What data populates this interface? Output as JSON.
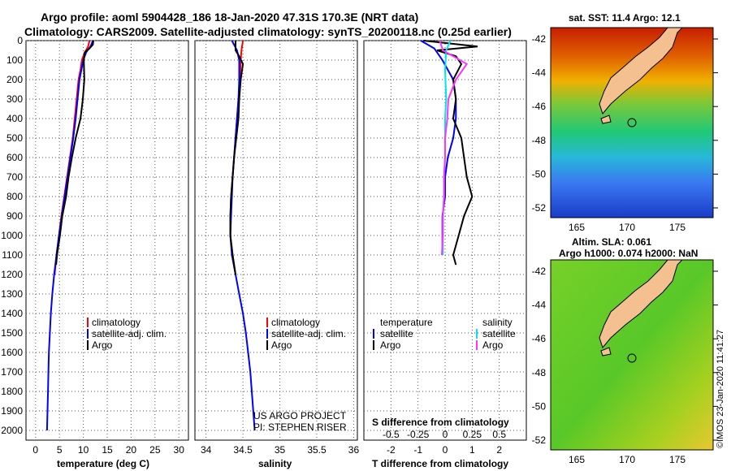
{
  "header": {
    "title_line1": "Argo profile: aoml 5904428_186 18-Jan-2020 47.31S 170.3E (NRT data)",
    "title_line2": "Climatology: CARS2009. Satellite-adjusted climatology: synTS_20200118.nc (0.25d earlier)"
  },
  "map_top": {
    "title": "sat. SST: 11.4 Argo: 12.1",
    "lat_ticks": [
      "-42",
      "-44",
      "-46",
      "-48",
      "-50",
      "-52"
    ],
    "lon_ticks": [
      "165",
      "170",
      "175"
    ]
  },
  "map_bottom": {
    "title_line1": "Altim. SLA: 0.061",
    "title_line2": "Argo h1000: 0.074 h2000: NaN",
    "lat_ticks": [
      "-42",
      "-44",
      "-46",
      "-48",
      "-50",
      "-52"
    ],
    "lon_ticks": [
      "165",
      "170",
      "175"
    ]
  },
  "credits": {
    "project": "US ARGO PROJECT",
    "pi": "PI: STEPHEN RISER",
    "stamp": "©IMOS 23-Jan-2020 11:41:27"
  },
  "chart_data": [
    {
      "type": "line",
      "xlabel": "temperature (deg C)",
      "x_ticks": [
        "0",
        "5",
        "10",
        "15",
        "20",
        "25",
        "30"
      ],
      "xlim": [
        -2,
        32
      ],
      "ylim": [
        2050,
        0
      ],
      "y_ticks": [
        "0",
        "100",
        "200",
        "300",
        "400",
        "500",
        "600",
        "700",
        "800",
        "900",
        "1000",
        "1100",
        "1200",
        "1300",
        "1400",
        "1500",
        "1600",
        "1700",
        "1800",
        "1900",
        "2000"
      ],
      "legend": [
        "climatology",
        "satellite-adj. clim.",
        "Argo"
      ],
      "series": [
        {
          "name": "climatology",
          "color": "#ff0000",
          "points": [
            [
              11.3,
              0
            ],
            [
              11.0,
              30
            ],
            [
              10.3,
              60
            ],
            [
              9.7,
              100
            ],
            [
              9.4,
              150
            ],
            [
              9.0,
              200
            ],
            [
              8.6,
              300
            ],
            [
              8.2,
              400
            ],
            [
              7.8,
              500
            ],
            [
              7.2,
              600
            ],
            [
              6.6,
              700
            ],
            [
              6.0,
              800
            ],
            [
              5.4,
              900
            ],
            [
              4.9,
              1000
            ],
            [
              4.4,
              1100
            ],
            [
              4.0,
              1200
            ]
          ]
        },
        {
          "name": "satellite-adj. clim.",
          "color": "#0000ff",
          "points": [
            [
              12.0,
              0
            ],
            [
              11.5,
              30
            ],
            [
              10.6,
              60
            ],
            [
              10.0,
              100
            ],
            [
              9.6,
              150
            ],
            [
              9.2,
              200
            ],
            [
              8.8,
              300
            ],
            [
              8.4,
              400
            ],
            [
              7.9,
              500
            ],
            [
              7.3,
              600
            ],
            [
              6.7,
              700
            ],
            [
              6.1,
              800
            ],
            [
              5.5,
              900
            ],
            [
              4.9,
              1000
            ],
            [
              4.4,
              1100
            ],
            [
              3.9,
              1200
            ],
            [
              3.5,
              1300
            ],
            [
              3.2,
              1400
            ],
            [
              3.0,
              1500
            ],
            [
              2.8,
              1600
            ],
            [
              2.7,
              1700
            ],
            [
              2.6,
              1800
            ],
            [
              2.5,
              1900
            ],
            [
              2.4,
              2000
            ]
          ]
        },
        {
          "name": "Argo",
          "color": "#000000",
          "points": [
            [
              12.1,
              0
            ],
            [
              12.0,
              20
            ],
            [
              11.3,
              40
            ],
            [
              10.3,
              60
            ],
            [
              10.1,
              100
            ],
            [
              10.2,
              200
            ],
            [
              9.9,
              300
            ],
            [
              9.4,
              400
            ],
            [
              8.4,
              500
            ],
            [
              7.6,
              600
            ],
            [
              6.9,
              700
            ],
            [
              6.4,
              800
            ],
            [
              5.6,
              900
            ],
            [
              5.1,
              1000
            ],
            [
              4.5,
              1100
            ],
            [
              4.3,
              1150
            ]
          ]
        }
      ]
    },
    {
      "type": "line",
      "xlabel": "salinity",
      "x_ticks": [
        "34",
        "34.5",
        "35",
        "35.5",
        "36"
      ],
      "xlim": [
        33.85,
        36.05
      ],
      "ylim": [
        2050,
        0
      ],
      "legend": [
        "climatology",
        "satellite-adj. clim.",
        "Argo"
      ],
      "series": [
        {
          "name": "climatology",
          "color": "#ff0000",
          "points": [
            [
              34.5,
              0
            ],
            [
              34.48,
              50
            ],
            [
              34.47,
              100
            ],
            [
              34.46,
              200
            ],
            [
              34.44,
              300
            ],
            [
              34.42,
              400
            ],
            [
              34.4,
              500
            ],
            [
              34.38,
              600
            ],
            [
              34.36,
              700
            ],
            [
              34.34,
              800
            ],
            [
              34.33,
              900
            ],
            [
              34.33,
              1000
            ],
            [
              34.36,
              1100
            ],
            [
              34.4,
              1200
            ]
          ]
        },
        {
          "name": "satellite-adj. clim.",
          "color": "#0000ff",
          "points": [
            [
              34.35,
              0
            ],
            [
              34.42,
              50
            ],
            [
              34.45,
              100
            ],
            [
              34.45,
              200
            ],
            [
              34.44,
              300
            ],
            [
              34.42,
              400
            ],
            [
              34.4,
              500
            ],
            [
              34.38,
              600
            ],
            [
              34.36,
              700
            ],
            [
              34.35,
              800
            ],
            [
              34.34,
              900
            ],
            [
              34.33,
              1000
            ],
            [
              34.35,
              1100
            ],
            [
              34.4,
              1200
            ],
            [
              34.45,
              1300
            ],
            [
              34.5,
              1400
            ],
            [
              34.54,
              1500
            ],
            [
              34.57,
              1600
            ],
            [
              34.6,
              1700
            ],
            [
              34.62,
              1800
            ],
            [
              34.64,
              1900
            ],
            [
              34.66,
              2000
            ]
          ]
        },
        {
          "name": "Argo",
          "color": "#000000",
          "points": [
            [
              34.4,
              0
            ],
            [
              34.4,
              50
            ],
            [
              34.45,
              80
            ],
            [
              34.5,
              120
            ],
            [
              34.47,
              200
            ],
            [
              34.45,
              300
            ],
            [
              34.44,
              400
            ],
            [
              34.41,
              500
            ],
            [
              34.38,
              600
            ],
            [
              34.36,
              700
            ],
            [
              34.34,
              800
            ],
            [
              34.33,
              900
            ],
            [
              34.33,
              1000
            ],
            [
              34.36,
              1100
            ],
            [
              34.4,
              1200
            ]
          ]
        }
      ]
    },
    {
      "type": "line",
      "xlabel": "T difference from climatology",
      "x_ticks": [
        "-2",
        "-1",
        "0",
        "1",
        "2"
      ],
      "x_ticks_top": [
        "-0.5",
        "-0.25",
        "0",
        "0.25",
        "0.5"
      ],
      "x_label_top": "S difference from climatology",
      "xlim": [
        -3,
        3
      ],
      "ylim": [
        2050,
        0
      ],
      "legend_left_title": "temperature",
      "legend_right_title": "salinity",
      "legend_left": [
        "satellite",
        "Argo"
      ],
      "legend_right": [
        "satellite",
        "Argo"
      ],
      "series": [
        {
          "name": "temperature satellite",
          "color": "#0000ff",
          "points": [
            [
              -0.9,
              0
            ],
            [
              -0.4,
              40
            ],
            [
              -0.1,
              100
            ],
            [
              0.3,
              200
            ],
            [
              0.4,
              300
            ],
            [
              0.4,
              400
            ],
            [
              0.3,
              500
            ],
            [
              0.1,
              600
            ],
            [
              0.0,
              700
            ],
            [
              0.0,
              800
            ],
            [
              -0.1,
              900
            ],
            [
              -0.1,
              1000
            ],
            [
              -0.1,
              1100
            ]
          ]
        },
        {
          "name": "temperature Argo",
          "color": "#000000",
          "points": [
            [
              -0.8,
              0
            ],
            [
              1.2,
              30
            ],
            [
              -0.3,
              50
            ],
            [
              0.4,
              80
            ],
            [
              0.6,
              120
            ],
            [
              0.3,
              200
            ],
            [
              0.4,
              300
            ],
            [
              0.3,
              400
            ],
            [
              0.6,
              500
            ],
            [
              0.7,
              600
            ],
            [
              0.8,
              700
            ],
            [
              1.0,
              800
            ],
            [
              0.7,
              900
            ],
            [
              0.5,
              1000
            ],
            [
              0.3,
              1100
            ],
            [
              0.4,
              1150
            ]
          ]
        },
        {
          "name": "salinity satellite",
          "color": "#00e5ee",
          "points": [
            [
              0.05,
              0
            ],
            [
              0.01,
              50
            ],
            [
              0.0,
              150
            ],
            [
              0.01,
              300
            ],
            [
              0.0,
              400
            ],
            [
              0.0,
              500
            ],
            [
              0.0,
              600
            ],
            [
              -0.01,
              700
            ],
            [
              -0.01,
              800
            ],
            [
              -0.02,
              900
            ],
            [
              -0.02,
              1000
            ],
            [
              -0.02,
              1100
            ]
          ]
        },
        {
          "name": "salinity Argo",
          "color": "#ff33ff",
          "points": [
            [
              -0.05,
              0
            ],
            [
              -0.02,
              50
            ],
            [
              0.2,
              120
            ],
            [
              0.1,
              200
            ],
            [
              0.03,
              300
            ],
            [
              0.02,
              400
            ],
            [
              0.0,
              500
            ],
            [
              0.0,
              600
            ],
            [
              -0.01,
              700
            ],
            [
              -0.01,
              800
            ],
            [
              -0.02,
              900
            ],
            [
              -0.02,
              1000
            ],
            [
              -0.03,
              1100
            ]
          ]
        }
      ]
    }
  ]
}
